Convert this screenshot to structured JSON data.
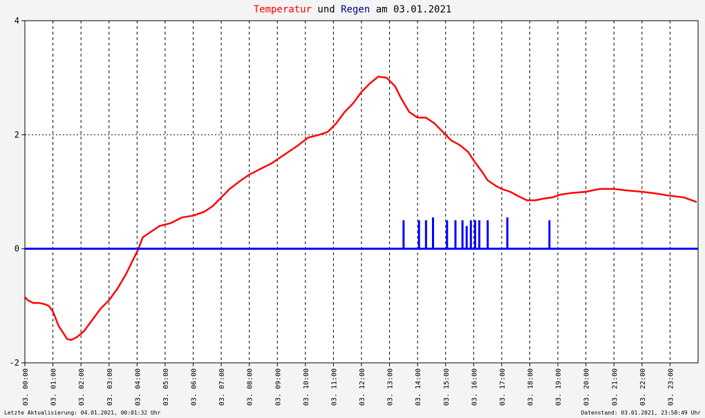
{
  "chart_data": {
    "type": "line",
    "title_parts": [
      {
        "text": "Temperatur",
        "color": "#ff0000"
      },
      {
        "text": " und ",
        "color": "#000000"
      },
      {
        "text": "Regen",
        "color": "#000080"
      },
      {
        "text": " am 03.01.2021",
        "color": "#000000"
      }
    ],
    "x_range_hours": [
      0,
      24
    ],
    "ylim": [
      -2,
      4
    ],
    "y_ticks": [
      {
        "value": -2,
        "label": "-2"
      },
      {
        "value": 0,
        "label": "0"
      },
      {
        "value": 2,
        "label": "2"
      },
      {
        "value": 4,
        "label": "4"
      }
    ],
    "x_ticks": [
      {
        "hour": 0,
        "label": "03. 00:00"
      },
      {
        "hour": 1,
        "label": "03. 01:00"
      },
      {
        "hour": 2,
        "label": "03. 02:00"
      },
      {
        "hour": 3,
        "label": "03. 03:00"
      },
      {
        "hour": 4,
        "label": "03. 04:00"
      },
      {
        "hour": 5,
        "label": "03. 05:00"
      },
      {
        "hour": 6,
        "label": "03. 06:00"
      },
      {
        "hour": 7,
        "label": "03. 07:00"
      },
      {
        "hour": 8,
        "label": "03. 08:00"
      },
      {
        "hour": 9,
        "label": "03. 09:00"
      },
      {
        "hour": 10,
        "label": "03. 10:00"
      },
      {
        "hour": 11,
        "label": "03. 11:00"
      },
      {
        "hour": 12,
        "label": "03. 12:00"
      },
      {
        "hour": 13,
        "label": "03. 13:00"
      },
      {
        "hour": 14,
        "label": "03. 14:00"
      },
      {
        "hour": 15,
        "label": "03. 15:00"
      },
      {
        "hour": 16,
        "label": "03. 16:00"
      },
      {
        "hour": 17,
        "label": "03. 17:00"
      },
      {
        "hour": 18,
        "label": "03. 18:00"
      },
      {
        "hour": 19,
        "label": "03. 19:00"
      },
      {
        "hour": 20,
        "label": "03. 20:00"
      },
      {
        "hour": 21,
        "label": "03. 21:00"
      },
      {
        "hour": 22,
        "label": "03. 22:00"
      },
      {
        "hour": 23,
        "label": "03. 23:00"
      }
    ],
    "grid": true,
    "series": [
      {
        "name": "Temperatur",
        "color": "#ff0000",
        "x": [
          0,
          0.1,
          0.3,
          0.5,
          0.7,
          0.85,
          1.0,
          1.2,
          1.4,
          1.5,
          1.65,
          1.85,
          2.1,
          2.4,
          2.7,
          3.0,
          3.3,
          3.6,
          3.85,
          4.05,
          4.2,
          4.5,
          4.8,
          5.2,
          5.6,
          6.0,
          6.4,
          6.7,
          7.0,
          7.3,
          7.7,
          8.0,
          8.4,
          8.8,
          9.1,
          9.4,
          9.7,
          10.1,
          10.5,
          10.8,
          11.1,
          11.4,
          11.7,
          12.0,
          12.3,
          12.6,
          12.9,
          13.2,
          13.4,
          13.7,
          14.0,
          14.3,
          14.6,
          14.9,
          15.2,
          15.5,
          15.8,
          16.0,
          16.3,
          16.5,
          16.8,
          17.0,
          17.3,
          17.6,
          17.9,
          18.2,
          18.5,
          18.8,
          19.1,
          19.5,
          20.0,
          20.5,
          21.0,
          21.5,
          22.0,
          22.5,
          23.0,
          23.5,
          23.95
        ],
        "y": [
          -0.85,
          -0.9,
          -0.95,
          -0.95,
          -0.97,
          -1.0,
          -1.1,
          -1.35,
          -1.5,
          -1.58,
          -1.6,
          -1.55,
          -1.45,
          -1.25,
          -1.05,
          -0.9,
          -0.7,
          -0.45,
          -0.2,
          0.0,
          0.2,
          0.3,
          0.4,
          0.45,
          0.55,
          0.58,
          0.65,
          0.75,
          0.9,
          1.05,
          1.2,
          1.3,
          1.4,
          1.5,
          1.6,
          1.7,
          1.8,
          1.95,
          2.0,
          2.05,
          2.2,
          2.4,
          2.55,
          2.75,
          2.9,
          3.02,
          3.0,
          2.85,
          2.65,
          2.4,
          2.3,
          2.3,
          2.2,
          2.05,
          1.9,
          1.82,
          1.7,
          1.55,
          1.35,
          1.2,
          1.1,
          1.05,
          1.0,
          0.92,
          0.85,
          0.85,
          0.88,
          0.9,
          0.95,
          0.98,
          1.0,
          1.05,
          1.05,
          1.02,
          1.0,
          0.97,
          0.93,
          0.9,
          0.82
        ]
      },
      {
        "name": "Regen",
        "color": "#0000ff",
        "x": [
          13.5,
          14.05,
          14.3,
          14.55,
          15.05,
          15.35,
          15.6,
          15.75,
          15.9,
          16.05,
          16.2,
          16.5,
          17.2,
          18.7
        ],
        "y": [
          0.5,
          0.5,
          0.5,
          0.55,
          0.5,
          0.5,
          0.5,
          0.4,
          0.5,
          0.5,
          0.5,
          0.5,
          0.55,
          0.5
        ]
      }
    ]
  },
  "footer": {
    "left": "Letzte Aktualisierung: 04.01.2021, 00:01:32 Uhr",
    "right": "Datenstand: 03.01.2021, 23:58:49 Uhr"
  }
}
